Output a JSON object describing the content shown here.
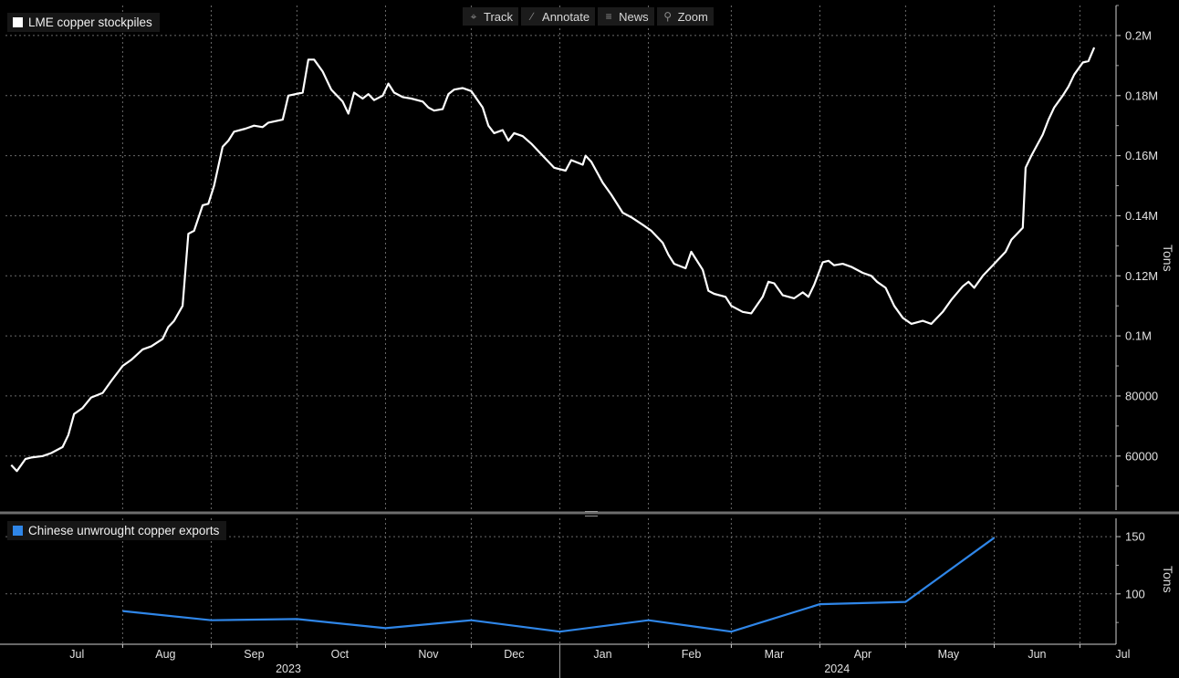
{
  "toolbar": {
    "items": [
      {
        "label": "Track",
        "icon": "crosshair-icon"
      },
      {
        "label": "Annotate",
        "icon": "pencil-icon"
      },
      {
        "label": "News",
        "icon": "news-icon"
      },
      {
        "label": "Zoom",
        "icon": "magnifier-icon"
      }
    ]
  },
  "chart_data": [
    {
      "type": "line",
      "series": [
        {
          "name": "LME copper stockpiles",
          "color": "#ffffff",
          "points": [
            [
              "2023-06-22",
              57000
            ],
            [
              "2023-06-24",
              55000
            ],
            [
              "2023-06-27",
              59000
            ],
            [
              "2023-06-29",
              59500
            ],
            [
              "2023-07-03",
              60000
            ],
            [
              "2023-07-06",
              61000
            ],
            [
              "2023-07-10",
              63000
            ],
            [
              "2023-07-12",
              67000
            ],
            [
              "2023-07-14",
              74000
            ],
            [
              "2023-07-17",
              76000
            ],
            [
              "2023-07-20",
              79500
            ],
            [
              "2023-07-24",
              81000
            ],
            [
              "2023-07-27",
              85000
            ],
            [
              "2023-07-31",
              90000
            ],
            [
              "2023-08-03",
              92000
            ],
            [
              "2023-08-07",
              95500
            ],
            [
              "2023-08-10",
              96500
            ],
            [
              "2023-08-14",
              99000
            ],
            [
              "2023-08-16",
              103000
            ],
            [
              "2023-08-18",
              105000
            ],
            [
              "2023-08-21",
              110000
            ],
            [
              "2023-08-23",
              134000
            ],
            [
              "2023-08-25",
              135000
            ],
            [
              "2023-08-28",
              143500
            ],
            [
              "2023-08-30",
              144000
            ],
            [
              "2023-09-01",
              150000
            ],
            [
              "2023-09-04",
              163000
            ],
            [
              "2023-09-06",
              165000
            ],
            [
              "2023-09-08",
              168000
            ],
            [
              "2023-09-12",
              169000
            ],
            [
              "2023-09-15",
              170000
            ],
            [
              "2023-09-18",
              169500
            ],
            [
              "2023-09-20",
              171000
            ],
            [
              "2023-09-25",
              172000
            ],
            [
              "2023-09-27",
              180000
            ],
            [
              "2023-10-02",
              181000
            ],
            [
              "2023-10-04",
              192000
            ],
            [
              "2023-10-06",
              192000
            ],
            [
              "2023-10-09",
              188000
            ],
            [
              "2023-10-12",
              182000
            ],
            [
              "2023-10-16",
              178000
            ],
            [
              "2023-10-18",
              174000
            ],
            [
              "2023-10-20",
              181000
            ],
            [
              "2023-10-23",
              179000
            ],
            [
              "2023-10-25",
              180500
            ],
            [
              "2023-10-27",
              178500
            ],
            [
              "2023-10-30",
              180000
            ],
            [
              "2023-11-01",
              184000
            ],
            [
              "2023-11-03",
              181000
            ],
            [
              "2023-11-06",
              179500
            ],
            [
              "2023-11-09",
              179000
            ],
            [
              "2023-11-13",
              178000
            ],
            [
              "2023-11-15",
              176000
            ],
            [
              "2023-11-17",
              175000
            ],
            [
              "2023-11-20",
              175500
            ],
            [
              "2023-11-22",
              180500
            ],
            [
              "2023-11-24",
              182000
            ],
            [
              "2023-11-27",
              182500
            ],
            [
              "2023-11-30",
              181500
            ],
            [
              "2023-12-04",
              176000
            ],
            [
              "2023-12-06",
              170000
            ],
            [
              "2023-12-08",
              167500
            ],
            [
              "2023-12-11",
              168500
            ],
            [
              "2023-12-13",
              165000
            ],
            [
              "2023-12-15",
              167500
            ],
            [
              "2023-12-18",
              166500
            ],
            [
              "2023-12-21",
              164000
            ],
            [
              "2023-12-26",
              159000
            ],
            [
              "2023-12-29",
              156000
            ],
            [
              "2024-01-02",
              155000
            ],
            [
              "2024-01-04",
              158500
            ],
            [
              "2024-01-08",
              157000
            ],
            [
              "2024-01-09",
              160000
            ],
            [
              "2024-01-11",
              158000
            ],
            [
              "2024-01-15",
              151000
            ],
            [
              "2024-01-18",
              147000
            ],
            [
              "2024-01-22",
              141000
            ],
            [
              "2024-01-25",
              139500
            ],
            [
              "2024-01-29",
              137000
            ],
            [
              "2024-02-01",
              135000
            ],
            [
              "2024-02-05",
              131000
            ],
            [
              "2024-02-07",
              127000
            ],
            [
              "2024-02-09",
              124000
            ],
            [
              "2024-02-13",
              122500
            ],
            [
              "2024-02-15",
              128000
            ],
            [
              "2024-02-19",
              122000
            ],
            [
              "2024-02-21",
              115000
            ],
            [
              "2024-02-23",
              114000
            ],
            [
              "2024-02-27",
              113000
            ],
            [
              "2024-02-29",
              110000
            ],
            [
              "2024-03-04",
              108000
            ],
            [
              "2024-03-07",
              107500
            ],
            [
              "2024-03-11",
              113000
            ],
            [
              "2024-03-13",
              118000
            ],
            [
              "2024-03-15",
              117500
            ],
            [
              "2024-03-18",
              113500
            ],
            [
              "2024-03-22",
              112500
            ],
            [
              "2024-03-25",
              114500
            ],
            [
              "2024-03-27",
              113000
            ],
            [
              "2024-03-29",
              117000
            ],
            [
              "2024-04-01",
              124500
            ],
            [
              "2024-04-03",
              125000
            ],
            [
              "2024-04-05",
              123500
            ],
            [
              "2024-04-08",
              124000
            ],
            [
              "2024-04-11",
              123000
            ],
            [
              "2024-04-15",
              121000
            ],
            [
              "2024-04-18",
              120000
            ],
            [
              "2024-04-20",
              118000
            ],
            [
              "2024-04-23",
              116000
            ],
            [
              "2024-04-26",
              110000
            ],
            [
              "2024-04-29",
              106000
            ],
            [
              "2024-05-02",
              104000
            ],
            [
              "2024-05-06",
              105000
            ],
            [
              "2024-05-09",
              104000
            ],
            [
              "2024-05-13",
              108000
            ],
            [
              "2024-05-16",
              112000
            ],
            [
              "2024-05-20",
              116500
            ],
            [
              "2024-05-22",
              118000
            ],
            [
              "2024-05-24",
              116000
            ],
            [
              "2024-05-27",
              120000
            ],
            [
              "2024-05-31",
              124000
            ],
            [
              "2024-06-04",
              128000
            ],
            [
              "2024-06-06",
              132000
            ],
            [
              "2024-06-10",
              136000
            ],
            [
              "2024-06-11",
              156000
            ],
            [
              "2024-06-13",
              160000
            ],
            [
              "2024-06-17",
              167000
            ],
            [
              "2024-06-19",
              172000
            ],
            [
              "2024-06-21",
              176000
            ],
            [
              "2024-06-24",
              180000
            ],
            [
              "2024-06-26",
              183000
            ],
            [
              "2024-06-28",
              187000
            ],
            [
              "2024-07-01",
              191000
            ],
            [
              "2024-07-03",
              191500
            ],
            [
              "2024-07-05",
              196000
            ]
          ]
        }
      ],
      "y_ticks": [
        {
          "value": 60000,
          "label": "60000"
        },
        {
          "value": 80000,
          "label": "80000"
        },
        {
          "value": 100000,
          "label": "0.1M"
        },
        {
          "value": 120000,
          "label": "0.12M"
        },
        {
          "value": 140000,
          "label": "0.14M"
        },
        {
          "value": 160000,
          "label": "0.16M"
        },
        {
          "value": 180000,
          "label": "0.18M"
        },
        {
          "value": 200000,
          "label": "0.2M"
        }
      ],
      "ylabel": "Tons",
      "ylim": [
        42000,
        210000
      ],
      "grid": true,
      "legend_position": "top-left"
    },
    {
      "type": "line",
      "series": [
        {
          "name": "Chinese unwrought copper exports",
          "color": "#2f86e8",
          "points": [
            [
              "2023-07-31",
              85
            ],
            [
              "2023-08-31",
              77
            ],
            [
              "2023-09-30",
              78
            ],
            [
              "2023-10-31",
              70
            ],
            [
              "2023-11-30",
              77
            ],
            [
              "2023-12-31",
              67
            ],
            [
              "2024-01-31",
              77
            ],
            [
              "2024-02-29",
              67
            ],
            [
              "2024-03-31",
              91
            ],
            [
              "2024-04-30",
              93
            ],
            [
              "2024-05-31",
              149
            ]
          ]
        }
      ],
      "y_ticks": [
        {
          "value": 100,
          "label": "100"
        },
        {
          "value": 150,
          "label": "150"
        }
      ],
      "ylabel": "Tons",
      "ylim": [
        56,
        166
      ],
      "grid": true,
      "legend_position": "top-left"
    }
  ],
  "x_axis": {
    "range": [
      "2023-06-20",
      "2024-07-12"
    ],
    "months": [
      {
        "date": "2023-07-15",
        "label": "Jul"
      },
      {
        "date": "2023-08-15",
        "label": "Aug"
      },
      {
        "date": "2023-09-15",
        "label": "Sep"
      },
      {
        "date": "2023-10-15",
        "label": "Oct"
      },
      {
        "date": "2023-11-15",
        "label": "Nov"
      },
      {
        "date": "2023-12-15",
        "label": "Dec"
      },
      {
        "date": "2024-01-15",
        "label": "Jan"
      },
      {
        "date": "2024-02-15",
        "label": "Feb"
      },
      {
        "date": "2024-03-15",
        "label": "Mar"
      },
      {
        "date": "2024-04-15",
        "label": "Apr"
      },
      {
        "date": "2024-05-15",
        "label": "May"
      },
      {
        "date": "2024-06-15",
        "label": "Jun"
      },
      {
        "date": "2024-07-15",
        "label": "Jul"
      }
    ],
    "gridlines": [
      "2023-07-31",
      "2023-08-31",
      "2023-09-30",
      "2023-10-31",
      "2023-11-30",
      "2023-12-31",
      "2024-01-31",
      "2024-02-29",
      "2024-03-31",
      "2024-04-30",
      "2024-05-31",
      "2024-06-30"
    ],
    "years": [
      {
        "label": "2023",
        "date": "2023-09-27"
      },
      {
        "label": "2024",
        "date": "2024-04-06"
      }
    ],
    "year_divider": "2023-12-31"
  }
}
